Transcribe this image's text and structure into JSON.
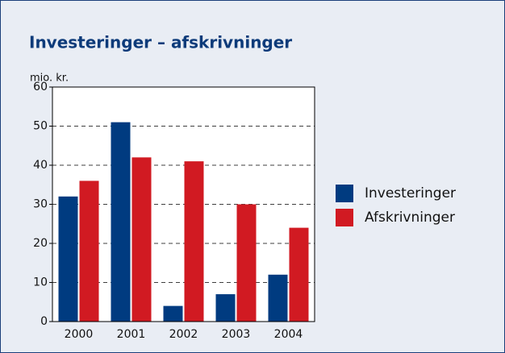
{
  "chart_data": {
    "type": "bar",
    "title": "Investeringer – afskrivninger",
    "ylabel": "mio. kr.",
    "categories": [
      "2000",
      "2001",
      "2002",
      "2003",
      "2004"
    ],
    "series": [
      {
        "name": "Investeringer",
        "color": "#003b80",
        "values": [
          32,
          51,
          4,
          7,
          12
        ]
      },
      {
        "name": "Afskrivninger",
        "color": "#d11a22",
        "values": [
          36,
          42,
          41,
          30,
          24
        ]
      }
    ],
    "ylim": [
      0,
      60
    ],
    "yticks": [
      0,
      10,
      20,
      30,
      40,
      50,
      60
    ],
    "grid": true,
    "legend": "right"
  }
}
